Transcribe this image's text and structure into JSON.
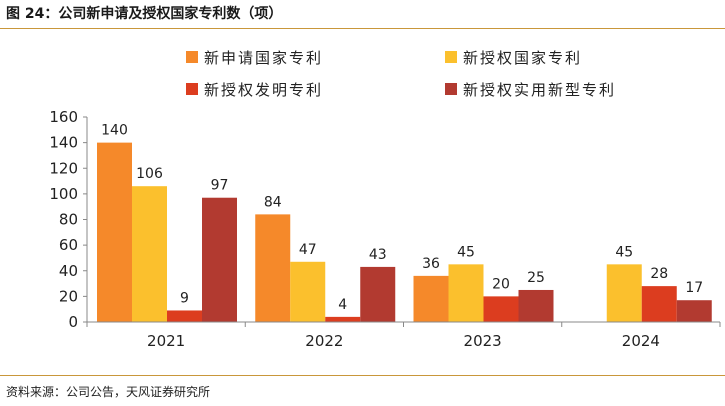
{
  "figure": {
    "title": "图 24：公司新申请及授权国家专利数（项）",
    "source": "资料来源：公司公告，天风证券研究所"
  },
  "chart_data": {
    "type": "bar",
    "title": "",
    "xlabel": "",
    "ylabel": "",
    "ylim": [
      0,
      160
    ],
    "yticks": [
      0,
      20,
      40,
      60,
      80,
      100,
      120,
      140,
      160
    ],
    "categories": [
      "2021",
      "2022",
      "2023",
      "2024"
    ],
    "grid": false,
    "legend_position": "top",
    "series": [
      {
        "name": "新申请国家专利",
        "color": "#f5892a",
        "values": [
          140,
          84,
          36,
          null
        ]
      },
      {
        "name": "新授权国家专利",
        "color": "#fbc02d",
        "values": [
          106,
          47,
          45,
          45
        ]
      },
      {
        "name": "新授权发明专利",
        "color": "#dc3d1f",
        "values": [
          9,
          4,
          20,
          28
        ]
      },
      {
        "name": "新授权实用新型专利",
        "color": "#b23a30",
        "values": [
          97,
          43,
          25,
          17
        ]
      }
    ]
  }
}
